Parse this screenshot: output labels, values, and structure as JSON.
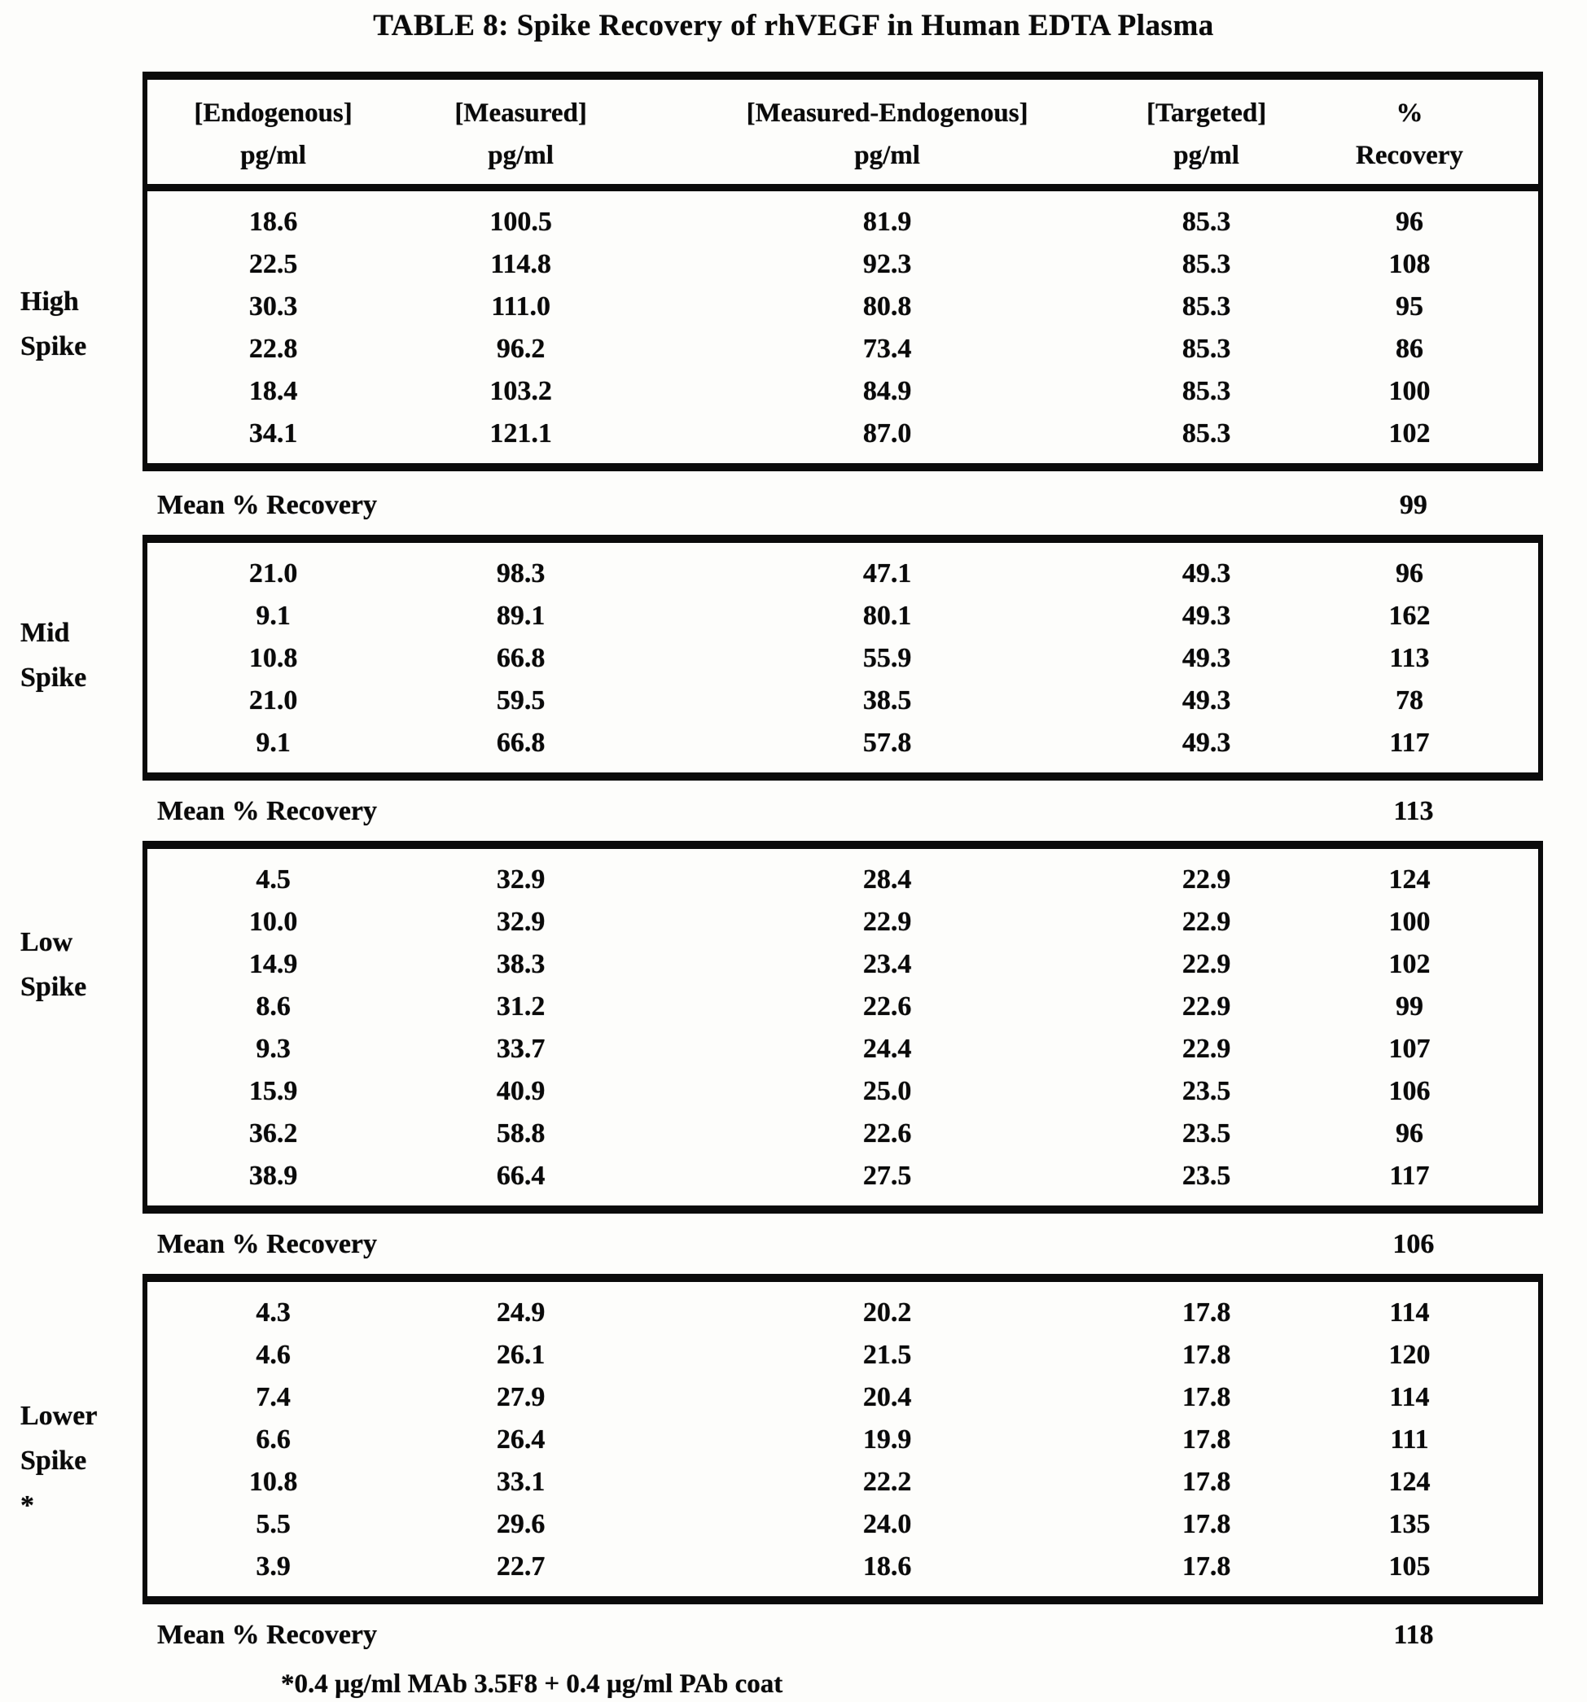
{
  "title": "TABLE 8: Spike Recovery of rhVEGF in Human EDTA Plasma",
  "table": {
    "columns": [
      {
        "label": "[Endogenous]",
        "unit": "pg/ml"
      },
      {
        "label": "[Measured]",
        "unit": "pg/ml"
      },
      {
        "label": "[Measured-Endogenous]",
        "unit": "pg/ml"
      },
      {
        "label": "[Targeted]",
        "unit": "pg/ml"
      },
      {
        "label": "%",
        "unit": "Recovery"
      }
    ],
    "groups": [
      {
        "label_lines": [
          "High",
          "Spike"
        ],
        "rows": [
          [
            "18.6",
            "100.5",
            "81.9",
            "85.3",
            "96"
          ],
          [
            "22.5",
            "114.8",
            "92.3",
            "85.3",
            "108"
          ],
          [
            "30.3",
            "111.0",
            "80.8",
            "85.3",
            "95"
          ],
          [
            "22.8",
            "96.2",
            "73.4",
            "85.3",
            "86"
          ],
          [
            "18.4",
            "103.2",
            "84.9",
            "85.3",
            "100"
          ],
          [
            "34.1",
            "121.1",
            "87.0",
            "85.3",
            "102"
          ]
        ],
        "mean_label": "Mean % Recovery",
        "mean_value": "99"
      },
      {
        "label_lines": [
          "Mid",
          "Spike"
        ],
        "rows": [
          [
            "21.0",
            "98.3",
            "47.1",
            "49.3",
            "96"
          ],
          [
            "9.1",
            "89.1",
            "80.1",
            "49.3",
            "162"
          ],
          [
            "10.8",
            "66.8",
            "55.9",
            "49.3",
            "113"
          ],
          [
            "21.0",
            "59.5",
            "38.5",
            "49.3",
            "78"
          ],
          [
            "9.1",
            "66.8",
            "57.8",
            "49.3",
            "117"
          ]
        ],
        "mean_label": "Mean % Recovery",
        "mean_value": "113"
      },
      {
        "label_lines": [
          "Low",
          "Spike"
        ],
        "rows": [
          [
            "4.5",
            "32.9",
            "28.4",
            "22.9",
            "124"
          ],
          [
            "10.0",
            "32.9",
            "22.9",
            "22.9",
            "100"
          ],
          [
            "14.9",
            "38.3",
            "23.4",
            "22.9",
            "102"
          ],
          [
            "8.6",
            "31.2",
            "22.6",
            "22.9",
            "99"
          ],
          [
            "9.3",
            "33.7",
            "24.4",
            "22.9",
            "107"
          ],
          [
            "15.9",
            "40.9",
            "25.0",
            "23.5",
            "106"
          ],
          [
            "36.2",
            "58.8",
            "22.6",
            "23.5",
            "96"
          ],
          [
            "38.9",
            "66.4",
            "27.5",
            "23.5",
            "117"
          ]
        ],
        "mean_label": "Mean % Recovery",
        "mean_value": "106"
      },
      {
        "label_lines": [
          "Lower",
          "Spike",
          "*"
        ],
        "rows": [
          [
            "4.3",
            "24.9",
            "20.2",
            "17.8",
            "114"
          ],
          [
            "4.6",
            "26.1",
            "21.5",
            "17.8",
            "120"
          ],
          [
            "7.4",
            "27.9",
            "20.4",
            "17.8",
            "114"
          ],
          [
            "6.6",
            "26.4",
            "19.9",
            "17.8",
            "111"
          ],
          [
            "10.8",
            "33.1",
            "22.2",
            "17.8",
            "124"
          ],
          [
            "5.5",
            "29.6",
            "24.0",
            "17.8",
            "135"
          ],
          [
            "3.9",
            "22.7",
            "18.6",
            "17.8",
            "105"
          ]
        ],
        "mean_label": "Mean % Recovery",
        "mean_value": "118"
      }
    ],
    "footnote": "*0.4 µg/ml MAb 3.5F8 + 0.4 µg/ml PAb coat"
  }
}
